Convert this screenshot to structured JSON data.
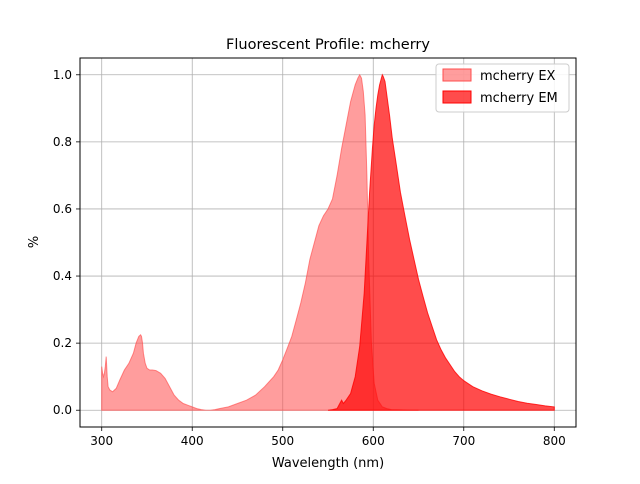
{
  "chart_data": {
    "type": "area",
    "title": "Fluorescent Profile: mcherry",
    "xlabel": "Wavelength (nm)",
    "ylabel": "%",
    "xlim": [
      276,
      824
    ],
    "ylim": [
      -0.05,
      1.05
    ],
    "x_ticks": [
      300,
      400,
      500,
      600,
      700,
      800
    ],
    "y_ticks": [
      0.0,
      0.2,
      0.4,
      0.6,
      0.8,
      1.0
    ],
    "x_tick_labels": [
      "300",
      "400",
      "500",
      "600",
      "700",
      "800"
    ],
    "y_tick_labels": [
      "0.0",
      "0.2",
      "0.4",
      "0.6",
      "0.8",
      "1.0"
    ],
    "grid": true,
    "legend_position": "top-right",
    "series": [
      {
        "name": "mcherry EX",
        "color": "#ff4d4d",
        "opacity": 0.55,
        "x": [
          300,
          301,
          302,
          303,
          304,
          305,
          306,
          307,
          309,
          312,
          316,
          320,
          325,
          330,
          335,
          338,
          341,
          343,
          344,
          345,
          346,
          348,
          350,
          353,
          356,
          360,
          365,
          370,
          375,
          380,
          385,
          390,
          395,
          400,
          405,
          410,
          415,
          420,
          425,
          430,
          440,
          450,
          460,
          470,
          480,
          490,
          495,
          500,
          505,
          510,
          515,
          520,
          525,
          530,
          535,
          540,
          545,
          550,
          555,
          560,
          565,
          570,
          575,
          580,
          583,
          585,
          587,
          589,
          591,
          593,
          595,
          598,
          601,
          605,
          610,
          615,
          620,
          630,
          640,
          650
        ],
        "y": [
          0.13,
          0.11,
          0.1,
          0.11,
          0.13,
          0.16,
          0.1,
          0.07,
          0.06,
          0.055,
          0.065,
          0.09,
          0.12,
          0.14,
          0.17,
          0.2,
          0.22,
          0.225,
          0.22,
          0.2,
          0.17,
          0.14,
          0.125,
          0.12,
          0.12,
          0.118,
          0.11,
          0.095,
          0.07,
          0.045,
          0.03,
          0.02,
          0.015,
          0.01,
          0.005,
          0.002,
          0.0,
          0.0,
          0.002,
          0.005,
          0.01,
          0.02,
          0.03,
          0.045,
          0.07,
          0.1,
          0.12,
          0.15,
          0.185,
          0.22,
          0.27,
          0.32,
          0.38,
          0.45,
          0.5,
          0.55,
          0.58,
          0.6,
          0.63,
          0.7,
          0.78,
          0.85,
          0.92,
          0.97,
          0.99,
          1.0,
          0.99,
          0.95,
          0.88,
          0.7,
          0.45,
          0.2,
          0.08,
          0.03,
          0.01,
          0.005,
          0.002,
          0.001,
          0.0,
          0.0
        ]
      },
      {
        "name": "mcherry EM",
        "color": "#ff0000",
        "opacity": 0.7,
        "x": [
          550,
          555,
          560,
          563,
          565,
          567,
          570,
          575,
          580,
          585,
          590,
          593,
          596,
          599,
          601,
          603,
          605,
          607,
          609,
          610,
          611,
          613,
          615,
          618,
          621,
          625,
          630,
          635,
          640,
          645,
          650,
          655,
          660,
          665,
          670,
          675,
          680,
          685,
          690,
          695,
          700,
          710,
          720,
          730,
          740,
          750,
          760,
          770,
          780,
          790,
          800
        ],
        "y": [
          0.0,
          0.002,
          0.005,
          0.02,
          0.03,
          0.02,
          0.03,
          0.05,
          0.1,
          0.19,
          0.35,
          0.5,
          0.65,
          0.78,
          0.85,
          0.9,
          0.94,
          0.97,
          0.99,
          1.0,
          0.995,
          0.98,
          0.94,
          0.88,
          0.81,
          0.74,
          0.65,
          0.58,
          0.51,
          0.45,
          0.39,
          0.34,
          0.29,
          0.25,
          0.21,
          0.18,
          0.155,
          0.135,
          0.115,
          0.1,
          0.088,
          0.07,
          0.058,
          0.048,
          0.04,
          0.033,
          0.026,
          0.021,
          0.017,
          0.013,
          0.01
        ]
      }
    ]
  }
}
